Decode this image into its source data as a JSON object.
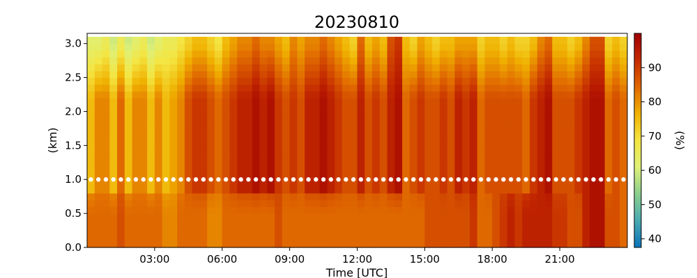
{
  "chart_data": {
    "type": "heatmap",
    "title": "20230810",
    "xlabel": "Time [UTC]",
    "ylabel": "(km)",
    "colorbar_label": "(%)",
    "xlim_hours": [
      0.0,
      24.0
    ],
    "ylim": [
      0.0,
      3.15
    ],
    "x_ticks": [
      {
        "hours": 3,
        "label": "03:00"
      },
      {
        "hours": 6,
        "label": "06:00"
      },
      {
        "hours": 9,
        "label": "09:00"
      },
      {
        "hours": 12,
        "label": "12:00"
      },
      {
        "hours": 15,
        "label": "15:00"
      },
      {
        "hours": 18,
        "label": "18:00"
      },
      {
        "hours": 21,
        "label": "21:00"
      }
    ],
    "y_ticks": [
      {
        "value": 0.0,
        "label": "0.0"
      },
      {
        "value": 0.5,
        "label": "0.5"
      },
      {
        "value": 1.0,
        "label": "1.0"
      },
      {
        "value": 1.5,
        "label": "1.5"
      },
      {
        "value": 2.0,
        "label": "2.0"
      },
      {
        "value": 2.5,
        "label": "2.5"
      },
      {
        "value": 3.0,
        "label": "3.0"
      }
    ],
    "colorbar": {
      "range": [
        37.5,
        100
      ],
      "ticks": [
        {
          "value": 40,
          "label": "40"
        },
        {
          "value": 50,
          "label": "50"
        },
        {
          "value": 60,
          "label": "60"
        },
        {
          "value": 70,
          "label": "70"
        },
        {
          "value": 80,
          "label": "80"
        },
        {
          "value": 90,
          "label": "90"
        }
      ],
      "colormap": [
        "#0a72b8",
        "#4aa9b0",
        "#8bcf8e",
        "#dff077",
        "#f4e542",
        "#f0b100",
        "#e06800",
        "#c42a00",
        "#a00000"
      ]
    },
    "time_start_hours": 0.0,
    "time_step_hours": 0.3333,
    "heights_km": [
      0.05,
      0.15,
      0.25,
      0.35,
      0.45,
      0.55,
      0.65,
      0.75,
      0.85,
      0.95,
      1.05,
      1.15,
      1.25,
      1.35,
      1.45,
      1.55,
      1.65,
      1.75,
      1.85,
      1.95,
      2.05,
      2.15,
      2.25,
      2.35,
      2.45,
      2.55,
      2.65,
      2.75,
      2.85,
      2.95,
      3.05
    ],
    "column_profiles": [
      [
        0.75,
        0.6,
        0.4
      ],
      [
        0.75,
        0.7,
        0.4
      ],
      [
        0.75,
        0.7,
        0.45
      ],
      [
        0.75,
        0.6,
        0.35
      ],
      [
        0.8,
        0.75,
        0.45
      ],
      [
        0.75,
        0.6,
        0.35
      ],
      [
        0.75,
        0.7,
        0.4
      ],
      [
        0.75,
        0.7,
        0.45
      ],
      [
        0.75,
        0.6,
        0.35
      ],
      [
        0.75,
        0.7,
        0.4
      ],
      [
        0.7,
        0.6,
        0.45
      ],
      [
        0.7,
        0.65,
        0.45
      ],
      [
        0.75,
        0.7,
        0.5
      ],
      [
        0.7,
        0.75,
        0.5
      ],
      [
        0.75,
        0.8,
        0.55
      ],
      [
        0.75,
        0.85,
        0.6
      ],
      [
        0.7,
        0.8,
        0.55
      ],
      [
        0.7,
        0.75,
        0.5
      ],
      [
        0.75,
        0.8,
        0.6
      ],
      [
        0.75,
        0.85,
        0.65
      ],
      [
        0.75,
        0.9,
        0.7
      ],
      [
        0.75,
        0.9,
        0.7
      ],
      [
        0.75,
        0.95,
        0.75
      ],
      [
        0.75,
        0.9,
        0.7
      ],
      [
        0.75,
        0.95,
        0.7
      ],
      [
        0.8,
        0.85,
        0.65
      ],
      [
        0.75,
        0.8,
        0.6
      ],
      [
        0.75,
        0.85,
        0.7
      ],
      [
        0.75,
        0.8,
        0.65
      ],
      [
        0.75,
        0.9,
        0.7
      ],
      [
        0.75,
        0.95,
        0.75
      ],
      [
        0.75,
        0.95,
        0.75
      ],
      [
        0.75,
        0.9,
        0.7
      ],
      [
        0.75,
        0.85,
        0.65
      ],
      [
        0.75,
        0.8,
        0.6
      ],
      [
        0.75,
        0.8,
        0.55
      ],
      [
        0.75,
        0.9,
        0.75
      ],
      [
        0.75,
        0.8,
        0.6
      ],
      [
        0.75,
        0.85,
        0.65
      ],
      [
        0.75,
        0.8,
        0.6
      ],
      [
        0.75,
        0.85,
        0.7
      ],
      [
        0.75,
        0.8,
        0.6
      ],
      [
        0.75,
        0.75,
        0.6
      ],
      [
        0.75,
        0.8,
        0.55
      ],
      [
        0.75,
        0.85,
        0.65
      ],
      [
        0.8,
        0.8,
        0.6
      ],
      [
        0.8,
        0.8,
        0.55
      ],
      [
        0.8,
        0.85,
        0.6
      ],
      [
        0.8,
        0.8,
        0.6
      ],
      [
        0.8,
        0.9,
        0.65
      ],
      [
        0.8,
        0.85,
        0.6
      ],
      [
        0.75,
        0.8,
        0.55
      ],
      [
        0.75,
        0.75,
        0.55
      ],
      [
        0.75,
        0.8,
        0.6
      ],
      [
        0.8,
        0.8,
        0.6
      ],
      [
        0.85,
        0.8,
        0.55
      ],
      [
        0.9,
        0.8,
        0.6
      ],
      [
        0.85,
        0.8,
        0.55
      ],
      [
        0.9,
        0.75,
        0.55
      ],
      [
        0.9,
        0.85,
        0.6
      ],
      [
        0.9,
        0.8,
        0.55
      ],
      [
        0.85,
        0.75,
        0.55
      ],
      [
        0.85,
        0.8,
        0.6
      ],
      [
        0.85,
        0.8,
        0.6
      ],
      [
        0.8,
        0.8,
        0.55
      ],
      [
        0.8,
        0.85,
        0.6
      ],
      [
        0.85,
        0.8,
        0.6
      ],
      [
        0.9,
        0.85,
        0.6
      ],
      [
        0.85,
        0.8,
        0.6
      ],
      [
        0.8,
        0.75,
        0.55
      ],
      [
        0.8,
        0.8,
        0.6
      ],
      [
        0.75,
        0.75,
        0.55
      ],
      [
        0.7,
        0.65,
        0.45
      ],
      [
        0.65,
        0.6,
        0.4
      ],
      [
        0.7,
        0.65,
        0.45
      ],
      [
        0.7,
        0.7,
        0.5
      ],
      [
        0.7,
        0.65,
        0.45
      ],
      [
        0.7,
        0.7,
        0.5
      ],
      [
        0.75,
        0.75,
        0.55
      ],
      [
        0.75,
        0.8,
        0.5
      ],
      [
        0.7,
        0.7,
        0.45
      ],
      [
        0.7,
        0.65,
        0.45
      ],
      [
        0.7,
        0.6,
        0.45
      ],
      [
        0.7,
        0.7,
        0.5
      ],
      [
        0.7,
        0.8,
        0.55
      ],
      [
        0.7,
        0.75,
        0.5
      ],
      [
        0.7,
        0.65,
        0.45
      ],
      [
        0.7,
        0.6,
        0.4
      ],
      [
        0.7,
        0.65,
        0.45
      ],
      [
        0.7,
        0.6,
        0.4
      ]
    ],
    "column_overrides": {
      "13": [
        0.75,
        0.8,
        0.55
      ],
      "14": [
        0.75,
        0.85,
        0.6
      ],
      "22": [
        0.75,
        0.95,
        0.75
      ],
      "23": [
        0.75,
        0.9,
        0.7
      ],
      "30": [
        0.75,
        0.9,
        0.7
      ],
      "31": [
        0.75,
        0.95,
        0.75
      ],
      "40": [
        0.75,
        0.9,
        0.8
      ],
      "41": [
        0.75,
        0.95,
        0.85
      ],
      "50": [
        0.8,
        0.85,
        0.65
      ],
      "51": [
        0.85,
        0.9,
        0.65
      ],
      "60": [
        0.9,
        0.9,
        0.7
      ],
      "61": [
        0.9,
        0.95,
        0.75
      ],
      "66": [
        0.9,
        0.9,
        0.7
      ],
      "67": [
        0.95,
        0.95,
        0.8
      ],
      "68": [
        0.95,
        0.95,
        0.8
      ]
    },
    "markers": {
      "height_km": 1.0,
      "color": "#ffffff"
    }
  }
}
